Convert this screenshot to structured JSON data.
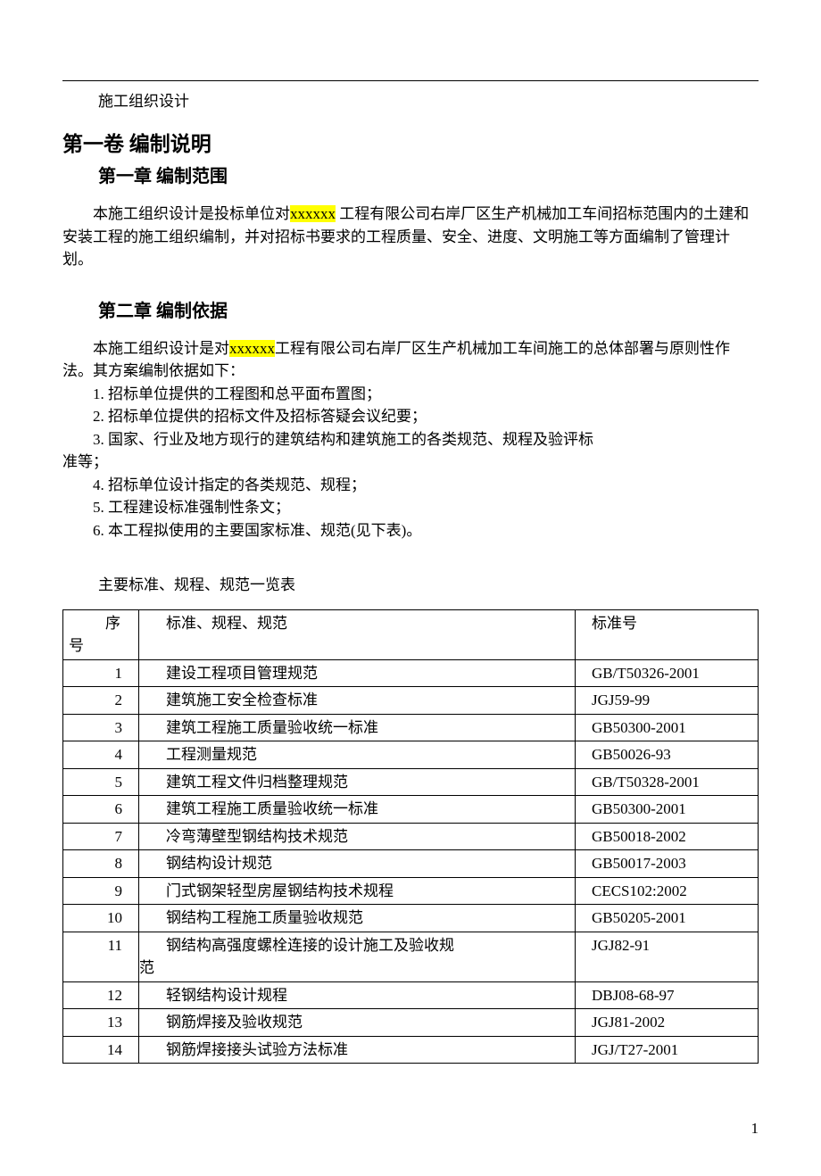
{
  "document": {
    "header_title": "施工组织设计",
    "volume_title": "第一卷  编制说明",
    "chapter1": {
      "title": "第一章    编制范围",
      "p1_a": "本施工组织设计是投标单位对",
      "p1_hl": "xxxxxx",
      "p1_b": " 工程有限公司右岸厂区生产机械加工车间招标范围内的土建和安装工程的施工组织编制，并对招标书要求的工程质量、安全、进度、文明施工等方面编制了管理计划。"
    },
    "chapter2": {
      "title": "第二章    编制依据",
      "p1_a": "本施工组织设计是对",
      "p1_hl": "xxxxxx",
      "p1_b": "工程有限公司右岸厂区生产机械加工车间施工的总体部署与原则性作法。其方案编制依据如下：",
      "items": [
        "1. 招标单位提供的工程图和总平面布置图；",
        "2. 招标单位提供的招标文件及招标答疑会议纪要；"
      ],
      "item3_line1": "3. 国家、行业及地方现行的建筑结构和建筑施工的各类规范、规程及验评标",
      "item3_line2": "准等；",
      "items2": [
        "4. 招标单位设计指定的各类规范、规程；",
        "5. 工程建设标准强制性条文；",
        "6. 本工程拟使用的主要国家标准、规范(见下表)。"
      ]
    },
    "table": {
      "caption": "主要标准、规程、规范一览表",
      "header": {
        "seq1": "序",
        "seq2": "号",
        "name": "标准、规程、规范",
        "code": "标准号"
      },
      "rows": [
        {
          "seq": "1",
          "name": "建设工程项目管理规范",
          "code": "GB/T50326-2001"
        },
        {
          "seq": "2",
          "name": "建筑施工安全检查标准",
          "code": "JGJ59-99"
        },
        {
          "seq": "3",
          "name": "建筑工程施工质量验收统一标准",
          "code": "GB50300-2001"
        },
        {
          "seq": "4",
          "name": "工程测量规范",
          "code": "GB50026-93"
        },
        {
          "seq": "5",
          "name": "建筑工程文件归档整理规范",
          "code": "GB/T50328-2001"
        },
        {
          "seq": "6",
          "name": "建筑工程施工质量验收统一标准",
          "code": "GB50300-2001"
        },
        {
          "seq": "7",
          "name": "冷弯薄壁型钢结构技术规范",
          "code": "GB50018-2002"
        },
        {
          "seq": "8",
          "name": "钢结构设计规范",
          "code": "GB50017-2003"
        },
        {
          "seq": "9",
          "name": "门式钢架轻型房屋钢结构技术规程",
          "code": "CECS102:2002"
        },
        {
          "seq": "10",
          "name": "钢结构工程施工质量验收规范",
          "code": "GB50205-2001"
        },
        {
          "seq": "11",
          "name": "钢结构高强度螺栓连接的设计施工及验收规",
          "name_l2": "范",
          "code": "JGJ82-91"
        },
        {
          "seq": "12",
          "name": "轻钢结构设计规程",
          "code": "DBJ08-68-97"
        },
        {
          "seq": "13",
          "name": "钢筋焊接及验收规范",
          "code": "JGJ81-2002"
        },
        {
          "seq": "14",
          "name": "钢筋焊接接头试验方法标准",
          "code": "JGJ/T27-2001"
        }
      ]
    },
    "page_number": "1"
  }
}
